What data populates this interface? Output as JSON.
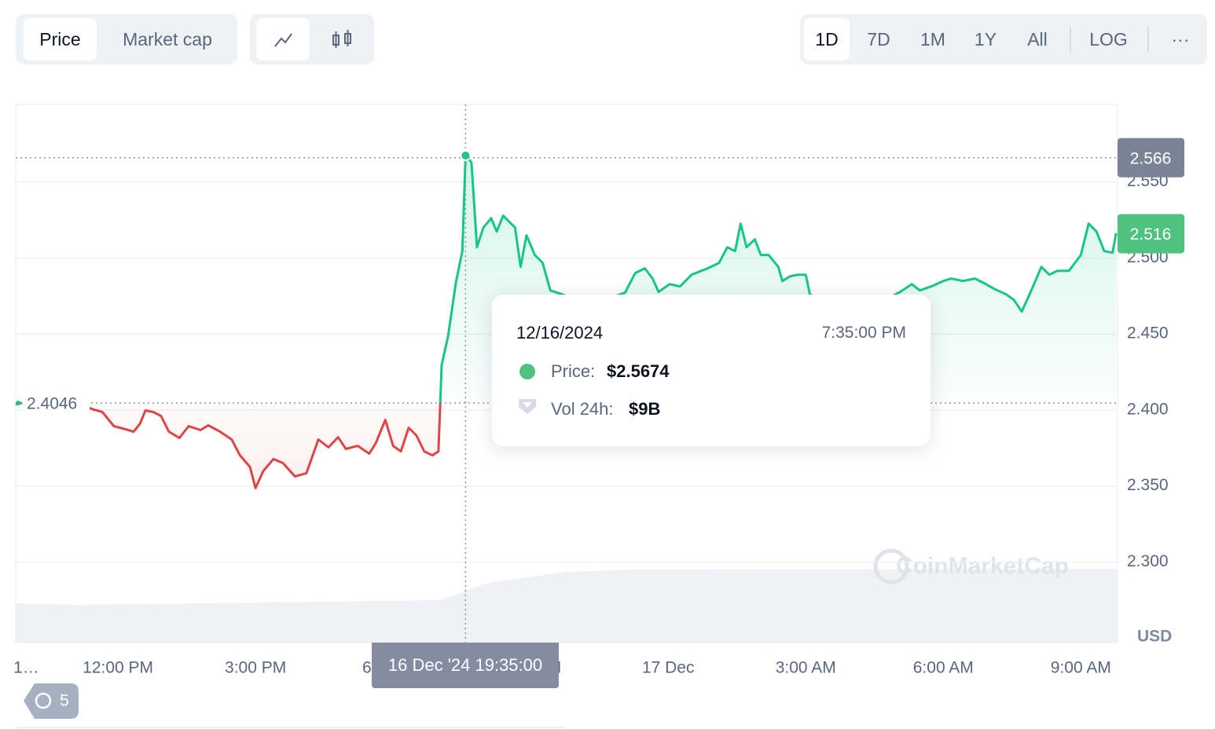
{
  "toolbar": {
    "metrics": [
      "Price",
      "Market cap"
    ],
    "ranges": [
      "1D",
      "7D",
      "1M",
      "1Y",
      "All"
    ],
    "scale": "LOG",
    "more": "···"
  },
  "history_count": "5",
  "watermark": "CoinMarketCap",
  "chart_data": {
    "type": "line",
    "x": [
      9.77,
      10.2,
      10.37,
      10.97,
      11.14,
      11.48,
      11.66,
      11.91,
      12.17,
      12.34,
      12.48,
      12.6,
      12.77,
      12.94,
      13.11,
      13.34,
      13.54,
      13.8,
      13.97,
      14.23,
      14.48,
      14.66,
      14.88,
      15.0,
      15.17,
      15.39,
      15.6,
      15.86,
      16.11,
      16.37,
      16.59,
      16.8,
      16.97,
      17.23,
      17.48,
      17.62,
      17.83,
      18.0,
      18.17,
      18.34,
      18.51,
      18.68,
      18.86,
      18.99,
      19.06,
      19.2,
      19.37,
      19.51,
      19.58,
      19.71,
      19.83,
      19.97,
      20.14,
      20.26,
      20.4,
      20.66,
      20.78,
      20.91,
      21.09,
      21.26,
      21.43,
      21.94,
      22.46,
      23.06,
      23.28,
      23.49,
      23.66,
      23.79,
      24.03,
      24.26,
      24.51,
      24.86,
      25.11,
      25.29,
      25.46,
      25.58,
      25.71,
      25.89,
      26.02,
      26.19,
      26.4,
      26.49,
      26.66,
      26.83,
      27.0,
      27.09,
      27.6,
      28.29,
      29.06,
      29.31,
      29.49,
      29.74,
      30.0,
      30.17,
      30.43,
      30.69,
      30.86,
      31.11,
      31.37,
      31.54,
      31.71,
      31.92,
      32.14,
      32.31,
      32.49,
      32.74,
      33.0,
      33.17,
      33.34,
      33.51,
      33.69,
      33.77
    ],
    "values": [
      2.4038,
      2.4064,
      2.409,
      2.4054,
      2.4038,
      2.4002,
      2.3987,
      2.3894,
      2.3873,
      2.3857,
      2.3909,
      2.3997,
      2.3987,
      2.3961,
      2.3857,
      2.3816,
      2.3894,
      2.3868,
      2.3899,
      2.3857,
      2.3806,
      2.3702,
      2.3625,
      2.3486,
      2.3599,
      2.3677,
      2.3651,
      2.3563,
      2.3584,
      2.3806,
      2.3754,
      2.3821,
      2.3744,
      2.3764,
      2.3713,
      2.378,
      2.3935,
      2.3764,
      2.3728,
      2.3883,
      2.3832,
      2.3728,
      2.3702,
      2.3728,
      2.4296,
      2.4488,
      2.4839,
      2.5045,
      2.5674,
      2.5629,
      2.5071,
      2.52,
      2.5262,
      2.5174,
      2.5278,
      2.52,
      2.4942,
      2.5149,
      2.502,
      2.4968,
      2.4787,
      2.4735,
      2.471,
      2.4772,
      2.4901,
      2.4932,
      2.4865,
      2.4777,
      2.4828,
      2.4813,
      2.489,
      2.4932,
      2.4968,
      2.5071,
      2.5045,
      2.5226,
      2.5071,
      2.5123,
      2.502,
      2.502,
      2.4942,
      2.4849,
      2.488,
      2.489,
      2.489,
      2.4761,
      2.4684,
      2.4658,
      2.4777,
      2.4828,
      2.4787,
      2.4813,
      2.4849,
      2.4865,
      2.4849,
      2.4865,
      2.4839,
      2.4797,
      2.4761,
      2.4725,
      2.4648,
      2.4787,
      2.4942,
      2.489,
      2.4916,
      2.4916,
      2.502,
      2.5226,
      2.5174,
      2.5045,
      2.5035,
      2.5164
    ],
    "up_color": "#16c784",
    "down_color": "#e04545",
    "baseline": 2.4046,
    "markers": [
      {
        "value": 2.566,
        "color": "#7b8496",
        "dotted": true
      },
      {
        "value": 2.516,
        "color": "#4fc27f",
        "dotted": false
      }
    ],
    "xlim": [
      9.77,
      33.8
    ],
    "ylim": [
      2.247,
      2.601
    ],
    "xticks": [
      {
        "value": 10,
        "label": "1…"
      },
      {
        "value": 12,
        "label": "12:00 PM"
      },
      {
        "value": 15,
        "label": "3:00 PM"
      },
      {
        "value": 18,
        "label": "6:00 PM"
      },
      {
        "value": 21,
        "label": "9:00 PM"
      },
      {
        "value": 24,
        "label": "17 Dec"
      },
      {
        "value": 27,
        "label": "3:00 AM"
      },
      {
        "value": 30,
        "label": "6:00 AM"
      },
      {
        "value": 33,
        "label": "9:00 AM"
      }
    ],
    "yticks": [
      {
        "value": 2.3,
        "label": "2.300"
      },
      {
        "value": 2.35,
        "label": "2.350"
      },
      {
        "value": 2.4,
        "label": "2.400"
      },
      {
        "value": 2.45,
        "label": "2.450"
      },
      {
        "value": 2.5,
        "label": "2.500"
      },
      {
        "value": 2.55,
        "label": "2.550"
      }
    ],
    "y_unit": "USD",
    "grid": true,
    "tooltip": {
      "x": 19.58,
      "date": "12/16/2024",
      "time": "7:35:00 PM",
      "price_label": "Price:",
      "price": "$2.5674",
      "volume_label": "Vol 24h:",
      "volume": "$9B",
      "axis_label": "16 Dec '24 19:35:00"
    }
  }
}
